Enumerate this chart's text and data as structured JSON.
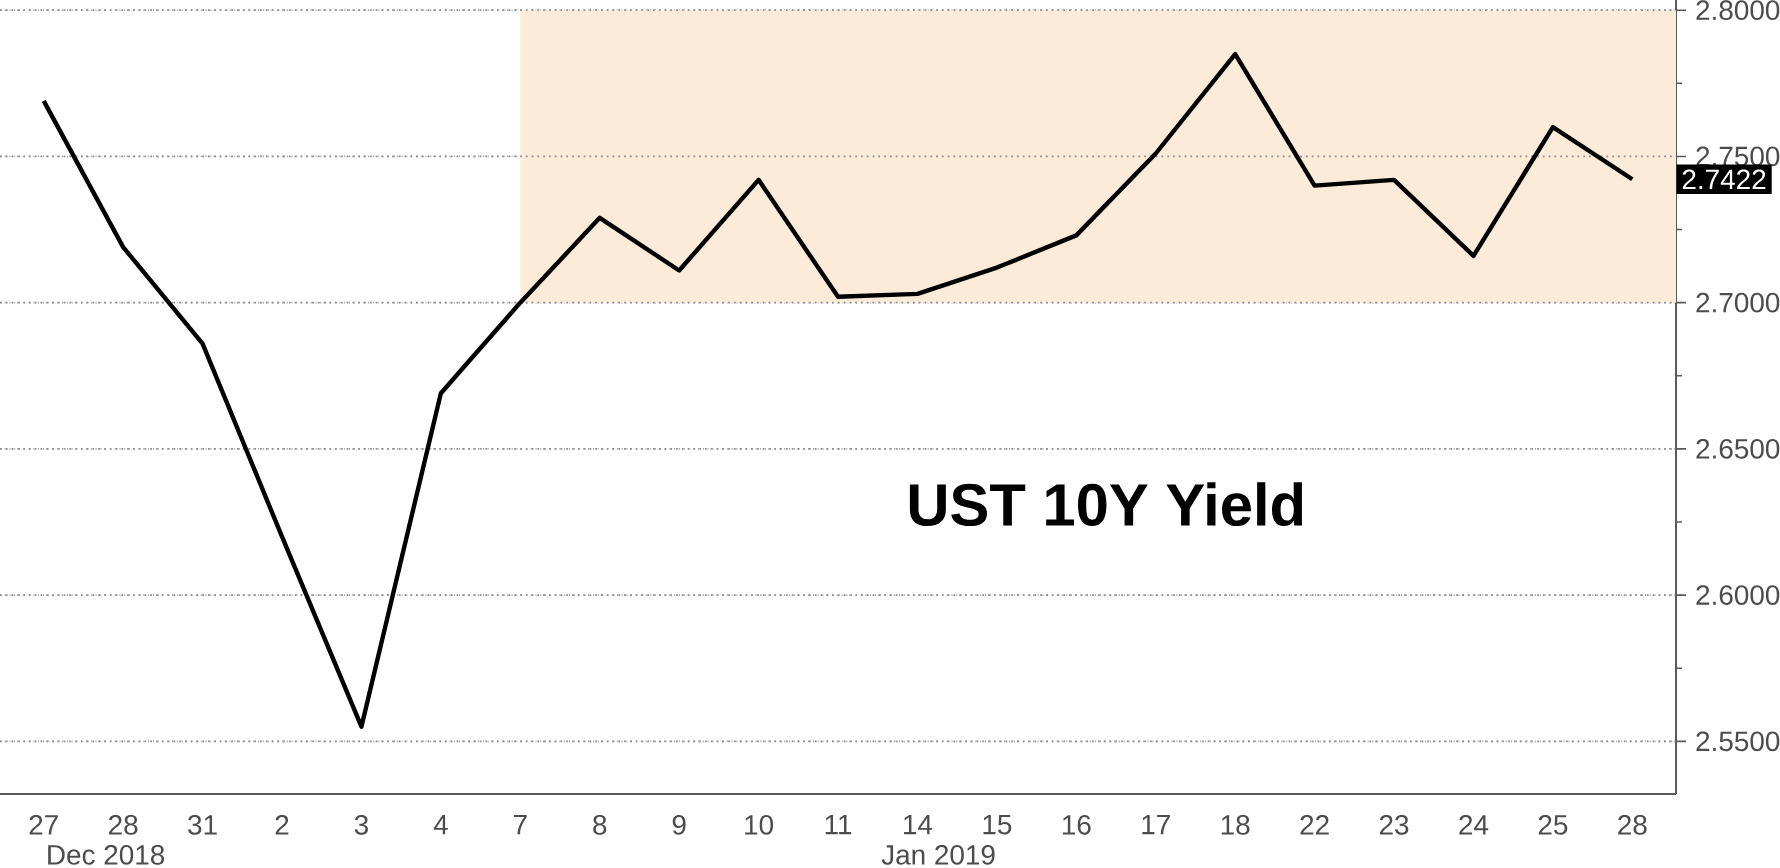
{
  "chart_data": {
    "type": "line",
    "title": "UST 10Y Yield",
    "categories": [
      "27",
      "28",
      "31",
      "2",
      "3",
      "4",
      "7",
      "8",
      "9",
      "10",
      "11",
      "14",
      "15",
      "16",
      "17",
      "18",
      "22",
      "23",
      "24",
      "25",
      "28"
    ],
    "series": [
      {
        "color": "#000000",
        "values": [
          2.769,
          2.719,
          2.686,
          2.62,
          2.555,
          2.669,
          2.7,
          2.729,
          2.711,
          2.742,
          2.702,
          2.703,
          2.712,
          2.723,
          2.751,
          2.785,
          2.74,
          2.742,
          2.716,
          2.76,
          2.7422
        ],
        "value_labels": [
          null,
          null,
          null,
          null,
          null,
          null,
          null,
          null,
          null,
          null,
          null,
          null,
          null,
          null,
          null,
          null,
          null,
          null,
          null,
          null,
          "2.7422"
        ]
      }
    ],
    "ylim": [
      2.532,
      2.8035
    ],
    "yticks": [
      {
        "value": 2.55,
        "label": "2.5500"
      },
      {
        "value": 2.575,
        "label": null
      },
      {
        "value": 2.6,
        "label": "2.6000"
      },
      {
        "value": 2.625,
        "label": null
      },
      {
        "value": 2.65,
        "label": "2.6500"
      },
      {
        "value": 2.675,
        "label": null
      },
      {
        "value": 2.7,
        "label": "2.7000"
      },
      {
        "value": 2.725,
        "label": null
      },
      {
        "value": 2.75,
        "label": "2.7500"
      },
      {
        "value": 2.775,
        "label": null
      },
      {
        "value": 2.8,
        "label": "2.8000"
      }
    ],
    "grid": "y",
    "bands": [
      {
        "axis": "y",
        "from": 2.7,
        "to": 2.8,
        "color": "#fdebd9"
      }
    ],
    "annotations": [
      "Dec 2018",
      "Jan 2019"
    ],
    "line_style": "solid"
  }
}
